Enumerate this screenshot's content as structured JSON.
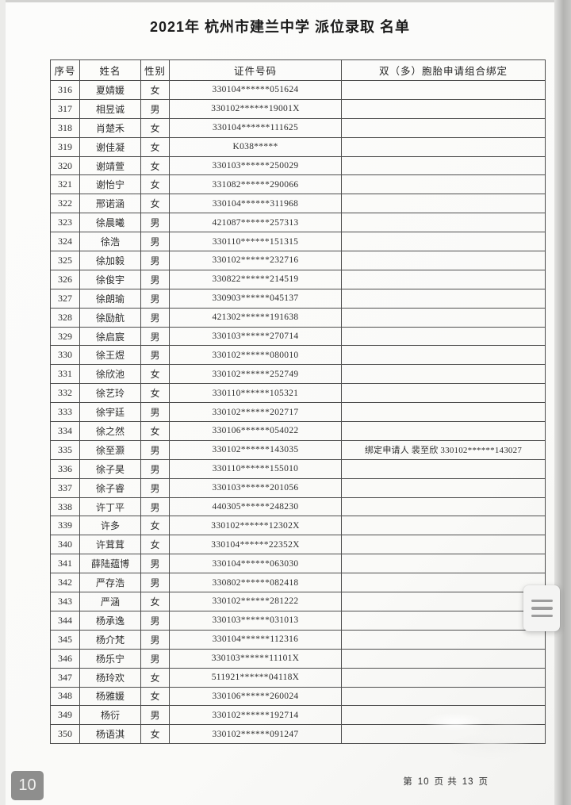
{
  "page": {
    "title": "2021年 杭州市建兰中学 派位录取 名单",
    "page_badge": "10",
    "footer": {
      "prefix": "第",
      "current_page": "10",
      "middle": "页 共",
      "total_pages": "13",
      "suffix": "页"
    }
  },
  "table": {
    "headers": [
      "序号",
      "姓名",
      "性别",
      "证件号码",
      "双（多）胞胎申请组合绑定"
    ],
    "rows": [
      [
        "316",
        "夏婧媛",
        "女",
        "330104******051624",
        ""
      ],
      [
        "317",
        "相昱诚",
        "男",
        "330102******19001X",
        ""
      ],
      [
        "318",
        "肖楚禾",
        "女",
        "330104******111625",
        ""
      ],
      [
        "319",
        "谢佳凝",
        "女",
        "K038*****",
        ""
      ],
      [
        "320",
        "谢靖萱",
        "女",
        "330103******250029",
        ""
      ],
      [
        "321",
        "谢怡宁",
        "女",
        "331082******290066",
        ""
      ],
      [
        "322",
        "邢诺涵",
        "女",
        "330104******311968",
        ""
      ],
      [
        "323",
        "徐晨曦",
        "男",
        "421087******257313",
        ""
      ],
      [
        "324",
        "徐浩",
        "男",
        "330110******151315",
        ""
      ],
      [
        "325",
        "徐加毅",
        "男",
        "330102******232716",
        ""
      ],
      [
        "326",
        "徐俊宇",
        "男",
        "330822******214519",
        ""
      ],
      [
        "327",
        "徐朗瑜",
        "男",
        "330903******045137",
        ""
      ],
      [
        "328",
        "徐励航",
        "男",
        "421302******191638",
        ""
      ],
      [
        "329",
        "徐启宸",
        "男",
        "330103******270714",
        ""
      ],
      [
        "330",
        "徐王煜",
        "男",
        "330102******080010",
        ""
      ],
      [
        "331",
        "徐欣池",
        "女",
        "330102******252749",
        ""
      ],
      [
        "332",
        "徐艺玲",
        "女",
        "330110******105321",
        ""
      ],
      [
        "333",
        "徐宇廷",
        "男",
        "330102******202717",
        ""
      ],
      [
        "334",
        "徐之然",
        "女",
        "330106******054022",
        ""
      ],
      [
        "335",
        "徐至灏",
        "男",
        "330102******143035",
        "绑定申请人 裴至欣 330102******143027"
      ],
      [
        "336",
        "徐子昊",
        "男",
        "330110******155010",
        ""
      ],
      [
        "337",
        "徐子睿",
        "男",
        "330103******201056",
        ""
      ],
      [
        "338",
        "许丁平",
        "男",
        "440305******248230",
        ""
      ],
      [
        "339",
        "许多",
        "女",
        "330102******12302X",
        ""
      ],
      [
        "340",
        "许茸茸",
        "女",
        "330104******22352X",
        ""
      ],
      [
        "341",
        "薛陆蕴博",
        "男",
        "330104******063030",
        ""
      ],
      [
        "342",
        "严存浩",
        "男",
        "330802******082418",
        ""
      ],
      [
        "343",
        "严涵",
        "女",
        "330102******281222",
        ""
      ],
      [
        "344",
        "杨承逸",
        "男",
        "330103******031013",
        ""
      ],
      [
        "345",
        "杨介梵",
        "男",
        "330104******112316",
        ""
      ],
      [
        "346",
        "杨乐宁",
        "男",
        "330103******11101X",
        ""
      ],
      [
        "347",
        "杨玲欢",
        "女",
        "511921******04118X",
        ""
      ],
      [
        "348",
        "杨雅媛",
        "女",
        "330106******260024",
        ""
      ],
      [
        "349",
        "杨衍",
        "男",
        "330102******192714",
        ""
      ],
      [
        "350",
        "杨语淇",
        "女",
        "330102******091247",
        ""
      ]
    ]
  },
  "floating_button": {
    "icon": "hamburger-menu-icon"
  },
  "colors": {
    "badge_bg": "#8e8e8d",
    "table_border": "#4e4e4e",
    "edge_shadow": "#b3b3b1"
  }
}
